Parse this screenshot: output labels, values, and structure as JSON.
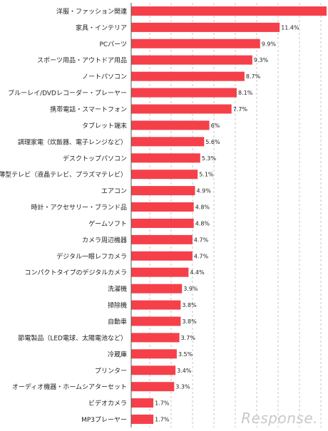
{
  "chart_data": {
    "type": "bar",
    "orientation": "horizontal",
    "categories": [
      "洋服・ファッション関連",
      "家具・インテリア",
      "PCパーツ",
      "スポーツ用品・アウトドア用品",
      "ノートパソコン",
      "ブルーレイ/DVDレコーダー・プレーヤー",
      "携帯電話・スマートフォン",
      "タブレット端末",
      "調理家電（炊飯器、電子レンジなど）",
      "デスクトップパソコン",
      "薄型テレビ（液晶テレビ、プラズマテレビ）",
      "エアコン",
      "時計・アクセサリー・ブランド品",
      "ゲームソフト",
      "カメラ周辺機器",
      "デジタル一眼レフカメラ",
      "コンパクトタイプのデジタルカメラ",
      "洗濯機",
      "掃除機",
      "自動車",
      "節電製品（LED電球、太陽電池など）",
      "冷蔵庫",
      "プリンター",
      "オーディオ機器・ホームシアターセット",
      "ビデオカメラ",
      "MP3プレーヤー"
    ],
    "values": [
      15.0,
      11.4,
      9.9,
      9.3,
      8.7,
      8.1,
      7.7,
      6.0,
      5.6,
      5.3,
      5.1,
      4.9,
      4.8,
      4.8,
      4.7,
      4.7,
      4.4,
      3.9,
      3.8,
      3.8,
      3.7,
      3.5,
      3.4,
      3.3,
      1.7,
      1.7
    ],
    "value_labels": [
      "",
      "11.4%",
      "9.9%",
      "9.3%",
      "8.7%",
      "8.1%",
      "7.7%",
      "6%",
      "5.6%",
      "5.3%",
      "5.1%",
      "4.9%",
      "4.8%",
      "4.8%",
      "4.7%",
      "4.7%",
      "4.4%",
      "3.9%",
      "3.8%",
      "3.8%",
      "3.7%",
      "3.5%",
      "3.4%",
      "3.3%",
      "1.7%",
      "1.7%"
    ],
    "xlim": [
      0,
      15
    ],
    "grid": true,
    "bar_color": "#f5404a"
  },
  "watermark": "Response."
}
